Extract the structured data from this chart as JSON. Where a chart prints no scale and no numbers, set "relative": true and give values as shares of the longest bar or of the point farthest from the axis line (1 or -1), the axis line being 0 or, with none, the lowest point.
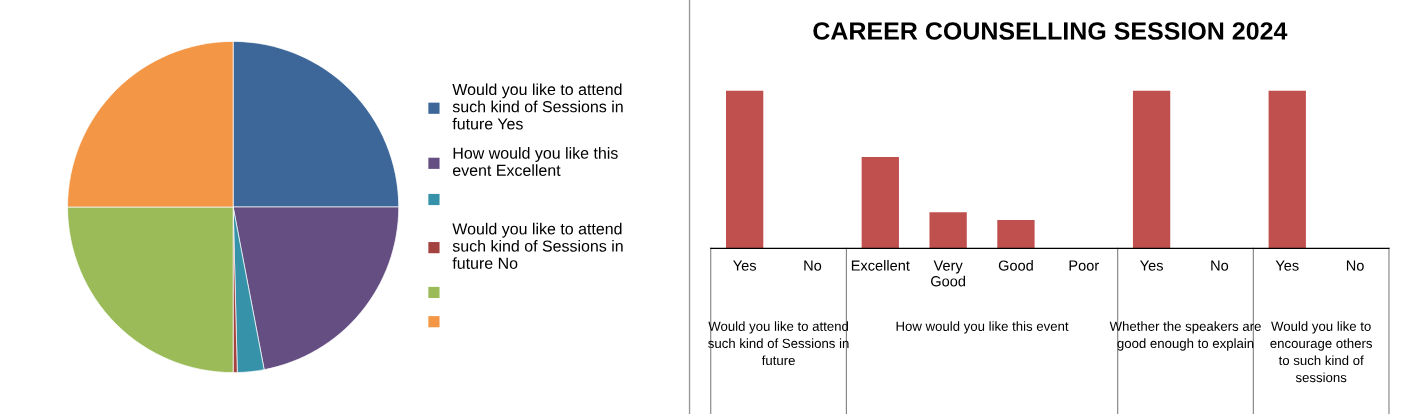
{
  "chart_data": [
    {
      "type": "pie",
      "categories": [
        "Would you like to attend\nsuch kind of Sessions in\nfuture Yes",
        "How would you like this\nevent Excellent",
        null,
        "Would you like to attend\nsuch kind of Sessions in\nfuture No",
        null,
        null
      ],
      "values": [
        25,
        22,
        2.6,
        0.4,
        25,
        25
      ],
      "colors": [
        "#3c6798",
        "#654e82",
        "#3692a8",
        "#a3423f",
        "#9bbb59",
        "#f39646"
      ],
      "legend": "right"
    },
    {
      "type": "bar",
      "title": "CAREER COUNSELLING SESSION 2024",
      "relative": true,
      "categories": [
        "Yes",
        "No",
        "Excellent",
        "Very\nGood",
        "Good",
        "Poor",
        "Yes",
        "No",
        "Yes",
        "No"
      ],
      "values": [
        1,
        0,
        0.58,
        0.23,
        0.18,
        0,
        1,
        0,
        1,
        0
      ],
      "color": "#c0504d",
      "annotations": [
        "Would you like to attend\nsuch kind of Sessions in\nfuture",
        "How would you like this event",
        "Whether the speakers are\ngood enough to explain",
        "Would you like to\nencourage others\nto such kind of\nsessions"
      ],
      "legend": false
    }
  ]
}
